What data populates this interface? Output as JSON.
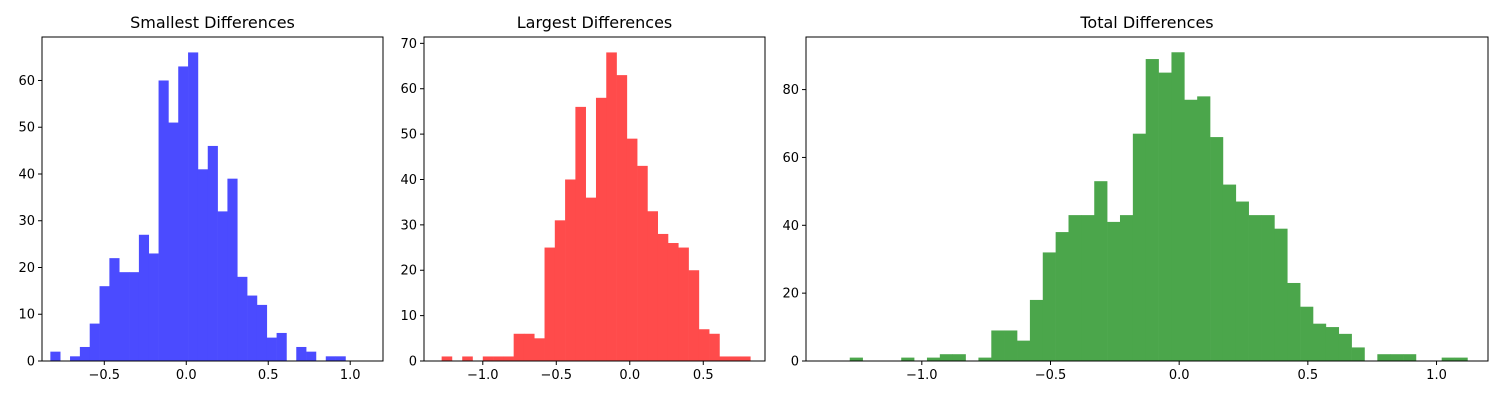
{
  "chart_data": [
    {
      "type": "bar",
      "title": "Smallest Differences",
      "xlabel": "",
      "ylabel": "",
      "bar_color": "#4b4bff",
      "xlim": [
        -0.88,
        1.2
      ],
      "ylim": [
        0,
        69.3
      ],
      "xticks": [
        -0.5,
        0.0,
        0.5,
        1.0
      ],
      "xtick_labels": [
        "−0.5",
        "0.0",
        "0.5",
        "1.0"
      ],
      "yticks": [
        0,
        10,
        20,
        30,
        40,
        50,
        60
      ],
      "ytick_labels": [
        "0",
        "10",
        "20",
        "30",
        "40",
        "50",
        "60"
      ],
      "bin_edges": [
        -0.829,
        -0.769,
        -0.709,
        -0.649,
        -0.589,
        -0.529,
        -0.469,
        -0.409,
        -0.349,
        -0.289,
        -0.229,
        -0.169,
        -0.109,
        -0.049,
        0.011,
        0.071,
        0.131,
        0.191,
        0.251,
        0.311,
        0.371,
        0.431,
        0.491,
        0.551,
        0.611,
        0.671,
        0.731,
        0.791,
        0.851,
        0.911,
        0.971,
        1.031,
        1.091
      ],
      "counts": [
        2,
        0,
        1,
        3,
        8,
        16,
        22,
        19,
        19,
        27,
        23,
        60,
        51,
        63,
        66,
        41,
        46,
        32,
        39,
        18,
        14,
        12,
        5,
        6,
        0,
        3,
        2,
        0,
        1,
        1,
        0,
        0
      ]
    },
    {
      "type": "bar",
      "title": "Largest Differences",
      "xlabel": "",
      "ylabel": "",
      "bar_color": "#ff4b4b",
      "xlim": [
        -1.4,
        0.92
      ],
      "ylim": [
        0,
        71.4
      ],
      "xticks": [
        -1.0,
        -0.5,
        0.0,
        0.5
      ],
      "xtick_labels": [
        "−1.0",
        "−0.5",
        "0.0",
        "0.5"
      ],
      "yticks": [
        0,
        10,
        20,
        30,
        40,
        50,
        60,
        70
      ],
      "ytick_labels": [
        "0",
        "10",
        "20",
        "30",
        "40",
        "50",
        "60",
        "70"
      ],
      "bin_edges": [
        -1.28,
        -1.21,
        -1.14,
        -1.07,
        -1.0,
        -0.93,
        -0.86,
        -0.79,
        -0.72,
        -0.65,
        -0.58,
        -0.51,
        -0.44,
        -0.37,
        -0.3,
        -0.23,
        -0.16,
        -0.09,
        -0.02,
        0.05,
        0.12,
        0.19,
        0.26,
        0.33,
        0.4,
        0.47,
        0.54,
        0.61,
        0.68,
        0.75,
        0.82
      ],
      "counts": [
        1,
        0,
        1,
        0,
        1,
        1,
        1,
        6,
        6,
        5,
        25,
        31,
        40,
        56,
        36,
        58,
        68,
        63,
        49,
        43,
        33,
        28,
        26,
        25,
        20,
        7,
        6,
        1,
        1,
        1
      ]
    },
    {
      "type": "bar",
      "title": "Total Differences",
      "xlabel": "",
      "ylabel": "",
      "bar_color": "#4ba64b",
      "xlim": [
        -1.45,
        1.2
      ],
      "ylim": [
        0,
        95.5
      ],
      "xticks": [
        -1.0,
        -0.5,
        0.0,
        0.5,
        1.0
      ],
      "xtick_labels": [
        "−1.0",
        "−0.5",
        "0.0",
        "0.5",
        "1.0"
      ],
      "yticks": [
        0,
        20,
        40,
        60,
        80
      ],
      "ytick_labels": [
        "0",
        "20",
        "40",
        "60",
        "80"
      ],
      "bin_edges": [
        -1.28,
        -1.23,
        -1.18,
        -1.13,
        -1.08,
        -1.03,
        -0.98,
        -0.93,
        -0.88,
        -0.83,
        -0.78,
        -0.73,
        -0.68,
        -0.63,
        -0.58,
        -0.53,
        -0.48,
        -0.43,
        -0.38,
        -0.33,
        -0.28,
        -0.23,
        -0.18,
        -0.13,
        -0.08,
        -0.03,
        0.02,
        0.07,
        0.12,
        0.17,
        0.22,
        0.27,
        0.32,
        0.37,
        0.42,
        0.47,
        0.52,
        0.57,
        0.62,
        0.67,
        0.72,
        0.77,
        0.82,
        0.87,
        0.92,
        0.97,
        1.02,
        1.07,
        1.12
      ],
      "counts": [
        1,
        0,
        0,
        0,
        1,
        0,
        1,
        2,
        2,
        0,
        1,
        9,
        9,
        6,
        18,
        32,
        38,
        43,
        43,
        53,
        41,
        43,
        67,
        89,
        85,
        91,
        77,
        78,
        66,
        52,
        47,
        43,
        43,
        39,
        23,
        16,
        11,
        10,
        8,
        4,
        0,
        2,
        2,
        2,
        0,
        0,
        1,
        1
      ]
    }
  ]
}
